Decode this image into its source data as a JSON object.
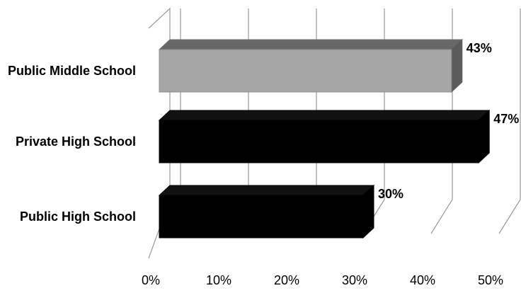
{
  "chart_data": {
    "type": "bar",
    "orientation": "horizontal",
    "three_d": true,
    "categories": [
      "Public Middle School",
      "Private High School",
      "Public High School"
    ],
    "values": [
      43,
      47,
      30
    ],
    "value_labels": [
      "43%",
      "47%",
      "30%"
    ],
    "bar_colors": [
      "#a6a6a6",
      "#000000",
      "#000000"
    ],
    "xlim": [
      0,
      50
    ],
    "x_ticks": [
      "0%",
      "10%",
      "20%",
      "30%",
      "40%",
      "50%"
    ],
    "grid": true,
    "legend": "none",
    "title": "",
    "xlabel": "",
    "ylabel": ""
  }
}
